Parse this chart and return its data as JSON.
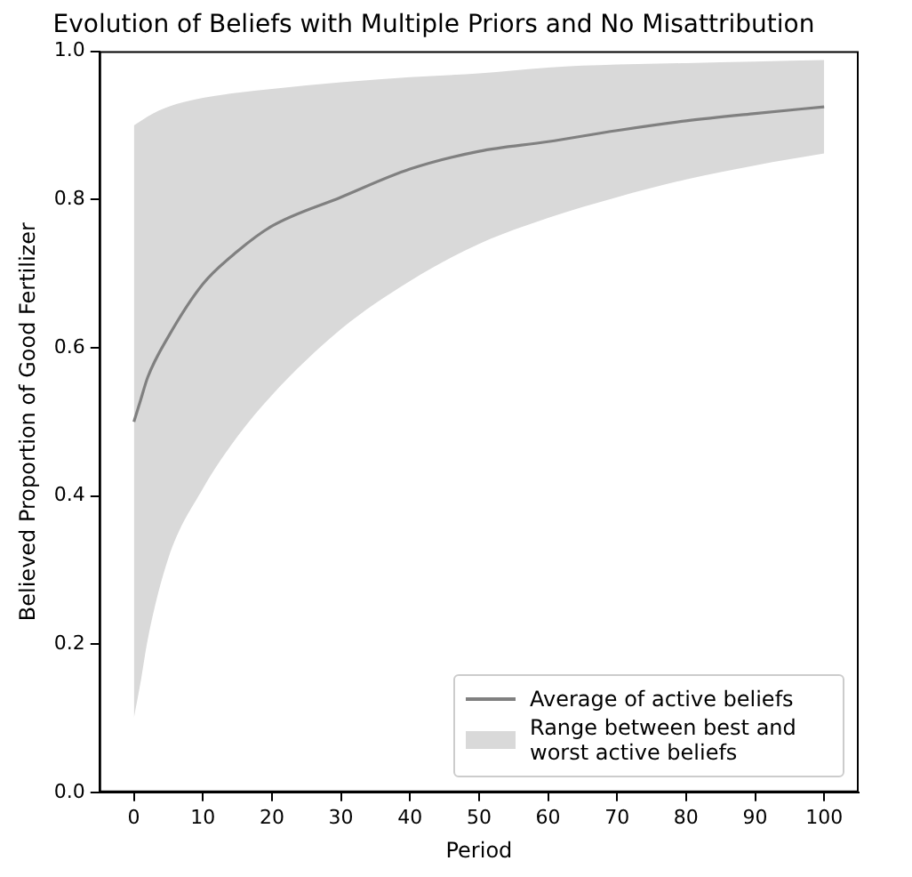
{
  "chart_data": {
    "type": "line",
    "title": "Evolution of Beliefs with Multiple Priors and No Misattribution",
    "xlabel": "Period",
    "ylabel": "Believed Proportion of Good Fertilizer",
    "x": [
      0,
      1,
      2,
      5,
      10,
      15,
      20,
      30,
      40,
      50,
      60,
      70,
      80,
      90,
      100
    ],
    "series": [
      {
        "name": "Average of active beliefs",
        "type": "line",
        "color": "#808080",
        "values": [
          0.5,
          0.53,
          0.56,
          0.615,
          0.686,
          0.73,
          0.764,
          0.803,
          0.841,
          0.865,
          0.878,
          0.893,
          0.906,
          0.916,
          0.925
        ],
        "lower": [
          0.1,
          0.15,
          0.206,
          0.316,
          0.41,
          0.48,
          0.536,
          0.625,
          0.69,
          0.74,
          0.775,
          0.803,
          0.827,
          0.846,
          0.862
        ],
        "upper": [
          0.9,
          0.906,
          0.912,
          0.925,
          0.937,
          0.944,
          0.949,
          0.958,
          0.965,
          0.97,
          0.978,
          0.982,
          0.984,
          0.986,
          0.988
        ]
      },
      {
        "name": "Range between best and worst active beliefs",
        "type": "area",
        "color": "#d9d9d9",
        "values": [
          null,
          null,
          null,
          null,
          null,
          null,
          null,
          null,
          null,
          null,
          null,
          null,
          null,
          null,
          null
        ]
      }
    ],
    "xlim": [
      -5,
      105
    ],
    "xticks": [
      0,
      10,
      20,
      30,
      40,
      50,
      60,
      70,
      80,
      90,
      100
    ],
    "ylim": [
      0,
      1
    ],
    "yticks": [
      {
        "value": 0,
        "label": "0.0"
      },
      {
        "value": 0.2,
        "label": "0.2"
      },
      {
        "value": 0.4,
        "label": "0.4"
      },
      {
        "value": 0.6,
        "label": "0.6"
      },
      {
        "value": 0.8,
        "label": "0.8"
      },
      {
        "value": 1,
        "label": "1.0"
      }
    ],
    "grid": false,
    "legend": "bottom right",
    "marker": "none",
    "line_style": "solid"
  }
}
